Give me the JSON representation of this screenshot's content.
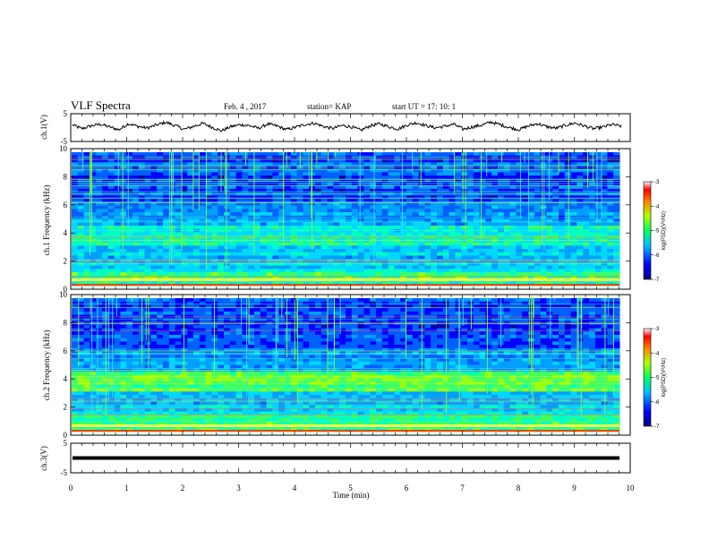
{
  "header": {
    "title": "VLF Spectra",
    "date": "Feb. 4 , 2017",
    "station": "station= KAP",
    "start": "start  UT  =   17: 10: 1"
  },
  "chart_data": [
    {
      "type": "line",
      "panel": "ch1-waveform",
      "ylabel": "ch.1(V)",
      "ylim": [
        -5,
        5
      ],
      "yticks": [
        "5",
        "-5"
      ],
      "xlim": [
        0,
        10
      ],
      "series": [
        {
          "values": [
            1.2,
            -0.5,
            0.8,
            1.5,
            0.3,
            -1.0,
            1.8,
            0.6,
            -0.2,
            1.1,
            2.4,
            1.0,
            -0.8,
            0.5,
            1.9,
            0.2,
            -1.5,
            0.4,
            1.3,
            0.9,
            -0.3,
            1.6,
            0.7,
            -0.9,
            0.2,
            1.4,
            2.0,
            0.5,
            -0.4,
            1.0,
            0.3,
            -1.2,
            0.8,
            1.7,
            0.4,
            -0.6,
            1.2,
            2.2,
            0.9,
            -0.1,
            0.6,
            1.5,
            -0.7,
            0.3,
            1.1,
            2.5,
            1.3,
            0.0,
            -0.9,
            0.7,
            1.8,
            0.4,
            -0.3,
            1.0,
            2.1,
            0.8,
            -0.5,
            0.2,
            1.4,
            0.6
          ]
        }
      ]
    },
    {
      "type": "heatmap",
      "panel": "ch1-spectrogram",
      "ylabel": "ch.1 Frequency (kHz)",
      "ylim": [
        0,
        10
      ],
      "yticks": [
        "0",
        "2",
        "4",
        "6",
        "8",
        "10"
      ],
      "xlim": [
        0,
        10
      ],
      "colorbar": {
        "label": "log(PSD)(V²/Hz)",
        "range": [
          -7,
          -3
        ],
        "ticks": [
          "-3",
          "-4",
          "-5",
          "-6",
          "-7"
        ]
      }
    },
    {
      "type": "heatmap",
      "panel": "ch2-spectrogram",
      "ylabel": "ch.2 Frequency (kHz)",
      "ylim": [
        0,
        10
      ],
      "yticks": [
        "0",
        "2",
        "4",
        "6",
        "8",
        "10"
      ],
      "xlim": [
        0,
        10
      ],
      "colorbar": {
        "label": "log(PSD)(V²/Hz)",
        "range": [
          -7,
          -3
        ],
        "ticks": [
          "-3",
          "-4",
          "-5",
          "-6",
          "-7"
        ]
      }
    },
    {
      "type": "line",
      "panel": "ch3-waveform",
      "ylabel": "ch.3(V)",
      "ylim": [
        -5,
        5
      ],
      "yticks": [
        "5",
        "-5"
      ],
      "xlim": [
        0,
        10
      ],
      "xlabel": "Time  (min)",
      "xticks": [
        "0",
        "1",
        "2",
        "3",
        "4",
        "5",
        "6",
        "7",
        "8",
        "9",
        "10"
      ],
      "series": [
        {
          "constant": 0
        }
      ]
    }
  ]
}
